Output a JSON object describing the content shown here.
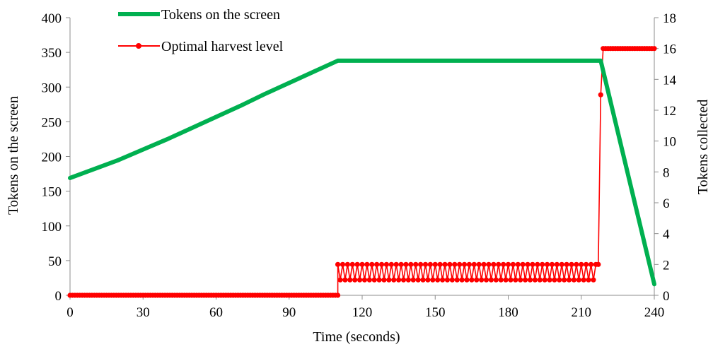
{
  "chart_data": {
    "type": "line",
    "title": "",
    "xlabel": "Time (seconds)",
    "ylabel": "Tokens on the screen",
    "y2label": "Tokens collected",
    "xlim": [
      0,
      240
    ],
    "ylim": [
      0,
      400
    ],
    "y2lim": [
      0,
      18
    ],
    "xticks": [
      "0",
      "30",
      "60",
      "90",
      "120",
      "150",
      "180",
      "210",
      "240"
    ],
    "yticks": [
      "0",
      "50",
      "100",
      "150",
      "200",
      "250",
      "300",
      "350",
      "400"
    ],
    "y2ticks": [
      "0",
      "2",
      "4",
      "6",
      "8",
      "10",
      "12",
      "14",
      "16",
      "18"
    ],
    "grid": false,
    "legend_position": "top-left",
    "colors": {
      "tokens_on_screen": "#00b050",
      "harvest": "#ff0000"
    },
    "series": [
      {
        "name": "Tokens on the screen",
        "axis": "left",
        "x": [
          0,
          10,
          20,
          30,
          40,
          50,
          60,
          70,
          80,
          90,
          100,
          110,
          120,
          130,
          140,
          150,
          160,
          170,
          180,
          190,
          200,
          210,
          218,
          240
        ],
        "values": [
          169,
          182,
          195,
          210,
          225,
          241,
          257,
          273,
          290,
          306,
          322,
          338,
          338,
          338,
          338,
          338,
          338,
          338,
          338,
          338,
          338,
          338,
          338,
          16
        ]
      },
      {
        "name": "Optimal harvest level",
        "axis": "right",
        "pattern": {
          "zero_until": 110,
          "alternate_start": 110,
          "alternate_end": 217,
          "alternate_step": 1,
          "alternate_values": [
            2,
            1
          ],
          "tail_x": [
            217,
            218,
            219,
            240
          ],
          "tail_values": [
            2,
            13,
            16,
            16
          ]
        }
      }
    ]
  }
}
